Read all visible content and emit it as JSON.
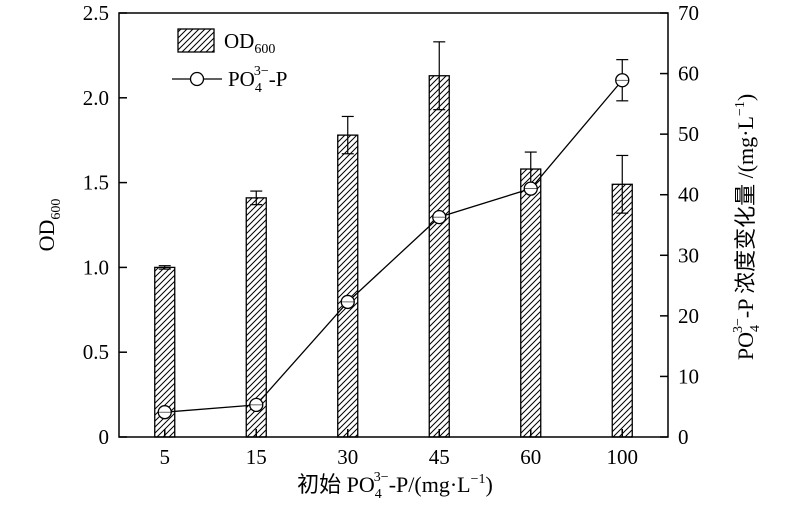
{
  "chart_data": {
    "type": "bar",
    "categories": [
      "5",
      "15",
      "30",
      "45",
      "60",
      "100"
    ],
    "series": [
      {
        "name": "OD600",
        "kind": "bar",
        "axis": "left",
        "values": [
          1.0,
          1.41,
          1.78,
          2.13,
          1.58,
          1.49
        ],
        "errors": [
          0.01,
          0.04,
          0.11,
          0.2,
          0.1,
          0.17
        ]
      },
      {
        "name": "PO4 3- -P",
        "kind": "line",
        "axis": "right",
        "values": [
          4.1,
          5.3,
          22.3,
          36.3,
          41.0,
          58.9
        ],
        "errors": [
          0,
          0,
          0,
          0,
          0,
          3.4
        ]
      }
    ],
    "xlabel": {
      "prefix": "初始 PO",
      "sub": "4",
      "sup": "3−",
      "suffix": "-P/(mg·L",
      "unit_sup": "−1",
      "close": ")"
    },
    "ylabel_left": {
      "base": "OD",
      "sub": "600"
    },
    "ylabel_right": {
      "prefix": "PO",
      "sub": "4",
      "sup": "3−",
      "suffix": "-P 浓度变化量 /(mg·L",
      "unit_sup": "−1",
      "close": ")"
    },
    "ylim_left": [
      0,
      2.5
    ],
    "ylim_right": [
      0,
      70
    ],
    "yticks_left": [
      "0",
      "0.5",
      "1.0",
      "1.5",
      "2.0",
      "2.5"
    ],
    "yticks_right": [
      "0",
      "10",
      "20",
      "30",
      "40",
      "50",
      "60",
      "70"
    ],
    "legend": {
      "position": "top-left",
      "items": [
        {
          "base": "OD",
          "sub": "600",
          "sup": ""
        },
        {
          "base": "PO",
          "sub": "4",
          "sup": "3−",
          "suffix": "-P"
        }
      ]
    },
    "grid": false
  }
}
